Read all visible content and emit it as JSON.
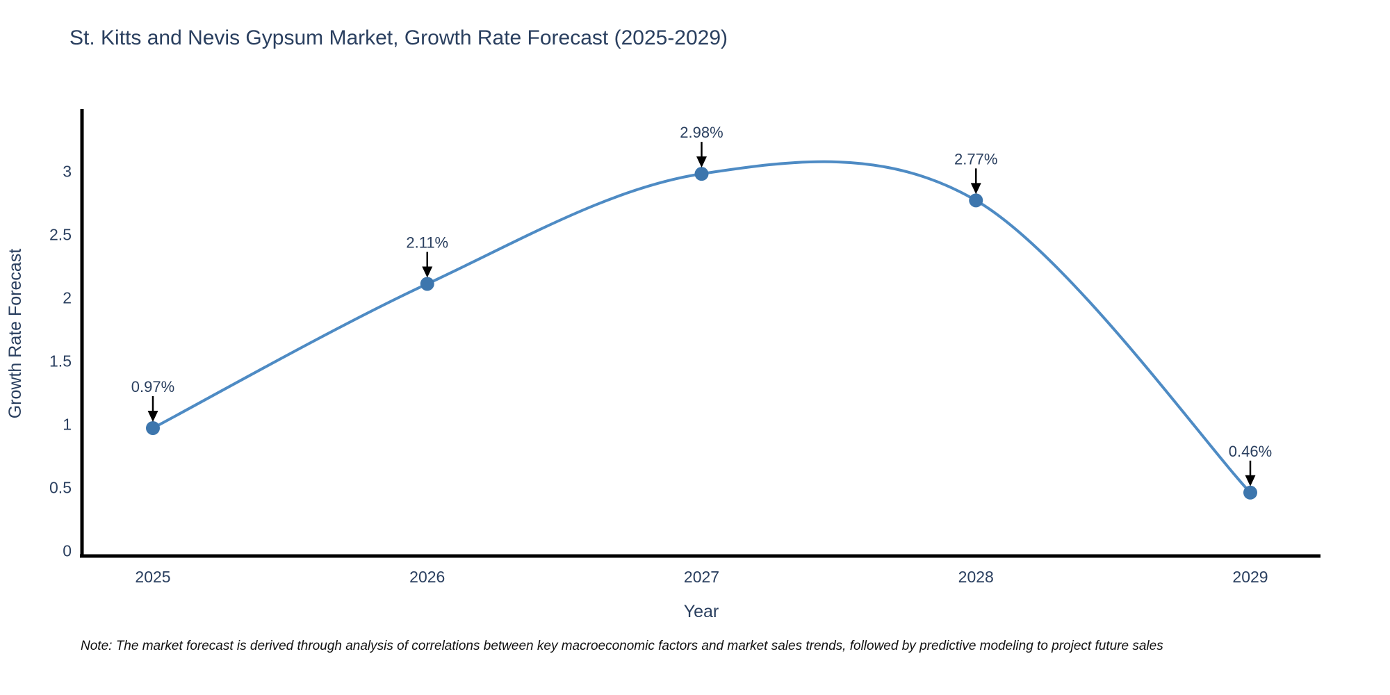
{
  "chart_data": {
    "type": "line",
    "title": "St. Kitts and Nevis Gypsum Market, Growth Rate Forecast (2025-2029)",
    "xlabel": "Year",
    "ylabel": "Growth Rate Forecast",
    "x": [
      2025,
      2026,
      2027,
      2028,
      2029
    ],
    "values": [
      0.97,
      2.11,
      2.98,
      2.77,
      0.46
    ],
    "point_labels": [
      "0.97%",
      "2.11%",
      "2.98%",
      "2.77%",
      "0.46%"
    ],
    "xtick_labels": [
      "2025",
      "2026",
      "2027",
      "2028",
      "2029"
    ],
    "yticks": [
      0,
      0.5,
      1,
      1.5,
      2,
      2.5,
      3
    ],
    "ytick_labels": [
      "0",
      "0.5",
      "1",
      "1.5",
      "2",
      "2.5",
      "3"
    ],
    "ylim": [
      0,
      3.5
    ],
    "line_shape": "spline",
    "grid": false,
    "legend_position": "none",
    "colors": {
      "line": "#4e8bc4",
      "marker": "#3d76ad",
      "text": "#2a3f5f",
      "axis": "#000000",
      "arrow": "#000000",
      "background": "#ffffff"
    }
  },
  "note": {
    "text": "Note: The market forecast is derived through analysis of correlations between key macroeconomic factors and market sales trends, followed by predictive modeling to project future sales"
  }
}
